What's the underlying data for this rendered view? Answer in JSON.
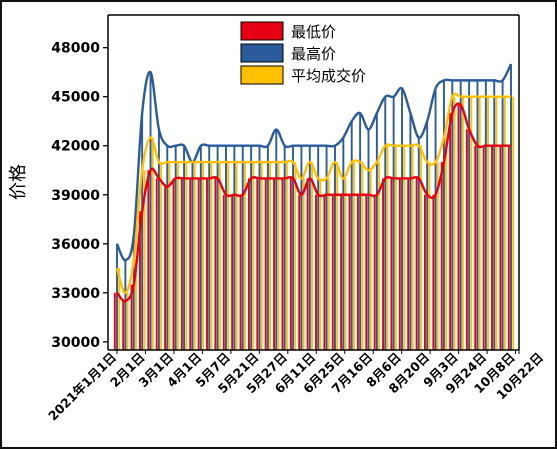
{
  "chart_data": {
    "type": "bar",
    "ylabel": "价格",
    "xlabel": "",
    "title": "",
    "ylim": [
      29500,
      50000
    ],
    "yticks": [
      30000,
      33000,
      36000,
      39000,
      42000,
      45000,
      48000
    ],
    "grid": false,
    "legend_position": "top-right",
    "x_tick_labels": [
      "2021年1月1日",
      "2月1日",
      "3月1日",
      "4月1日",
      "5月7日",
      "5月21日",
      "5月27日",
      "6月11日",
      "6月25日",
      "7月16日",
      "8月6日",
      "8月20日",
      "9月3日",
      "9月24日",
      "10月8日",
      "10月22日"
    ],
    "series": [
      {
        "name": "最低价",
        "color": "#e60012",
        "values": [
          33000,
          32500,
          33500,
          38000,
          40500,
          40000,
          39500,
          40000,
          40000,
          40000,
          40000,
          40000,
          40000,
          39000,
          39000,
          39000,
          40000,
          40000,
          40000,
          40000,
          40000,
          40000,
          39000,
          40000,
          39000,
          39000,
          39000,
          39000,
          39000,
          39000,
          39000,
          39000,
          40000,
          40000,
          40000,
          40000,
          40000,
          39000,
          39000,
          41000,
          44000,
          44500,
          43000,
          42000,
          42000,
          42000,
          42000,
          42000
        ]
      },
      {
        "name": "最高价",
        "color": "#2a5b9a",
        "values": [
          36000,
          35000,
          36500,
          44000,
          46500,
          43000,
          42000,
          42000,
          42000,
          41000,
          42000,
          42000,
          42000,
          42000,
          42000,
          42000,
          42000,
          42000,
          42000,
          43000,
          42000,
          42000,
          42000,
          42000,
          42000,
          42000,
          42000,
          42500,
          43500,
          44000,
          43000,
          44000,
          45000,
          45000,
          45500,
          44000,
          42500,
          43500,
          45500,
          46000,
          46000,
          46000,
          46000,
          46000,
          46000,
          46000,
          46000,
          47000
        ]
      },
      {
        "name": "平均成交价",
        "color": "#ffc000",
        "values": [
          34500,
          33000,
          35000,
          40500,
          42500,
          41000,
          41000,
          41000,
          41000,
          41000,
          41000,
          41000,
          41000,
          41000,
          41000,
          41000,
          41000,
          41000,
          41000,
          41000,
          41000,
          41000,
          40000,
          41000,
          40000,
          40000,
          41000,
          40000,
          41000,
          41000,
          40500,
          41000,
          42000,
          42000,
          42000,
          42000,
          42000,
          41000,
          41000,
          42500,
          45000,
          45000,
          45000,
          45000,
          45000,
          45000,
          45000,
          45000
        ]
      }
    ]
  }
}
